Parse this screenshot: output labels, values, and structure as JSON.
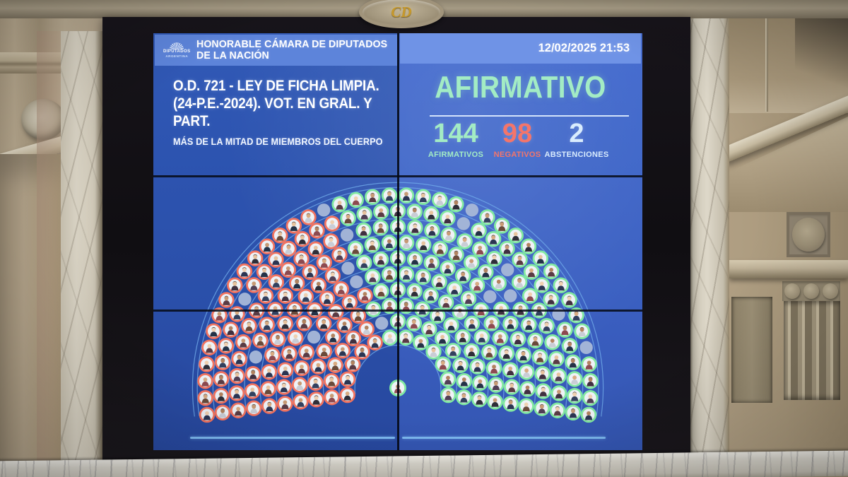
{
  "header": {
    "logo_top": "DIPUTADOS",
    "logo_bottom": "ARGENTINA",
    "title": "HONORABLE CÁMARA DE DIPUTADOS DE LA NACIÓN",
    "datetime": "12/02/2025 21:53"
  },
  "motion": {
    "title": "O.D. 721 - LEY DE FICHA LIMPIA. (24-P.E.-2024). VOT. EN GRAL. Y PART.",
    "quorum_rule": "MÁS DE LA MITAD DE MIEMBROS DEL CUERPO"
  },
  "result": {
    "outcome": "AFIRMATIVO",
    "counts": [
      {
        "value": "144",
        "label": "AFIRMATIVOS",
        "key": "afir"
      },
      {
        "value": "98",
        "label": "NEGATIVOS",
        "key": "neg"
      },
      {
        "value": "2",
        "label": "ABSTENCIONES",
        "key": "abst"
      }
    ]
  },
  "medallion": {
    "monogram": "CD"
  },
  "colors": {
    "bar-left": "#5d84da",
    "bar-right": "#6f93e6",
    "afir": "#a3ecc4",
    "neg": "#f4756a",
    "abst": "#d9ecfd",
    "seat-a": "#82e9a1",
    "seat-n": "#f2735f",
    "seat-x": "#a8b8d8",
    "arc": "#6fa9e9",
    "line": "#7cb8ef"
  },
  "hemicycle": {
    "legend": {
      "A": "afirmativo",
      "N": "negativo",
      "X": "sin-voto"
    },
    "president": "A",
    "rows": [
      "NNNNNAAAAAAA",
      "NNNNNNXAAAAAAAA",
      "NNNNNNNAAAAAAAAAAA",
      "NNNNXNNNNAAAAAAAAAAAA",
      "NNNNNNNNNXAAAAAAAAAAAAAA",
      "NNNNNNNNNNXAAAAAAAAXAAAAAAA",
      "NNNXNNNNNNNNAAAAAAAAAAXAAAAAAA",
      "NNNNNNNNNNNNNXAAAAAAAAAXAAAAAAAAA",
      "NNNNNNNXNNNNNNNAAAAAAAXAAAAAAAXAAAAAA",
      "NNNNNNNNNNNNNNNXAAAAAAAAXAAAAAAAAAAXAAAA"
    ]
  },
  "chart_data": {
    "type": "hemicycle",
    "title": "AFIRMATIVO",
    "series": [
      {
        "name": "AFIRMATIVOS",
        "value": 144
      },
      {
        "name": "NEGATIVOS",
        "value": 98
      },
      {
        "name": "ABSTENCIONES",
        "value": 2
      }
    ],
    "total_seats": 257
  }
}
